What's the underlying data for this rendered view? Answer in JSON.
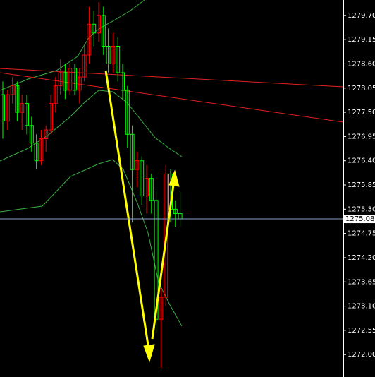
{
  "chart_data": {
    "type": "candlestick",
    "ylim": [
      1271.49,
      1280.05
    ],
    "yticks": [
      {
        "value": 1279.7,
        "label": "1279.70"
      },
      {
        "value": 1279.15,
        "label": "1279.15"
      },
      {
        "value": 1278.6,
        "label": "1278.60"
      },
      {
        "value": 1278.05,
        "label": "1278.05"
      },
      {
        "value": 1277.5,
        "label": "1277.50"
      },
      {
        "value": 1276.95,
        "label": "1276.95"
      },
      {
        "value": 1276.4,
        "label": "1276.40"
      },
      {
        "value": 1275.85,
        "label": "1275.85"
      },
      {
        "value": 1275.3,
        "label": "1275.30"
      },
      {
        "value": 1274.75,
        "label": "1274.75"
      },
      {
        "value": 1274.2,
        "label": "1274.20"
      },
      {
        "value": 1273.65,
        "label": "1273.65"
      },
      {
        "value": 1273.1,
        "label": "1273.10"
      },
      {
        "value": 1272.55,
        "label": "1272.55"
      },
      {
        "value": 1272,
        "label": "1272.00"
      }
    ],
    "last_price": 1275.08,
    "up_color": "#ff0000",
    "down_color": "#00ff00",
    "candles": [
      [
        1277.9,
        1278.2,
        1276.9,
        1277.3
      ],
      [
        1277.3,
        1278.0,
        1277.1,
        1277.9
      ],
      [
        1277.9,
        1278.3,
        1277.7,
        1278.1
      ],
      [
        1278.1,
        1278.2,
        1277.3,
        1277.5
      ],
      [
        1277.5,
        1277.9,
        1277.1,
        1277.7
      ],
      [
        1277.7,
        1277.9,
        1277.0,
        1277.2
      ],
      [
        1277.2,
        1277.4,
        1276.6,
        1276.8
      ],
      [
        1276.8,
        1277.0,
        1276.2,
        1276.4
      ],
      [
        1276.4,
        1277.1,
        1276.3,
        1276.9
      ],
      [
        1276.9,
        1277.2,
        1276.6,
        1277.1
      ],
      [
        1277.1,
        1277.9,
        1277.0,
        1277.7
      ],
      [
        1277.7,
        1278.3,
        1277.5,
        1278.1
      ],
      [
        1278.1,
        1278.7,
        1277.9,
        1278.4
      ],
      [
        1278.4,
        1278.6,
        1277.8,
        1278.0
      ],
      [
        1278.0,
        1278.6,
        1277.9,
        1278.5
      ],
      [
        1278.5,
        1278.6,
        1277.9,
        1278.0
      ],
      [
        1278.0,
        1278.5,
        1277.7,
        1278.3
      ],
      [
        1278.3,
        1279.0,
        1278.2,
        1278.8
      ],
      [
        1278.8,
        1279.9,
        1278.6,
        1279.5
      ],
      [
        1279.5,
        1279.8,
        1279.0,
        1279.3
      ],
      [
        1279.3,
        1280.0,
        1279.1,
        1279.7
      ],
      [
        1279.7,
        1279.9,
        1278.8,
        1279.0
      ],
      [
        1279.0,
        1279.4,
        1278.4,
        1278.6
      ],
      [
        1278.6,
        1279.3,
        1278.4,
        1279.0
      ],
      [
        1279.0,
        1279.2,
        1278.2,
        1278.4
      ],
      [
        1278.4,
        1278.6,
        1277.8,
        1278.0
      ],
      [
        1278.0,
        1278.1,
        1276.7,
        1277.0
      ],
      [
        1277.0,
        1277.2,
        1275.0,
        1276.2
      ],
      [
        1276.2,
        1276.6,
        1275.8,
        1276.4
      ],
      [
        1276.4,
        1276.5,
        1275.4,
        1275.6
      ],
      [
        1275.6,
        1276.3,
        1275.2,
        1276.0
      ],
      [
        1276.0,
        1276.1,
        1275.2,
        1275.5
      ],
      [
        1275.5,
        1275.7,
        1272.5,
        1272.8
      ],
      [
        1272.8,
        1273.5,
        1271.7,
        1273.3
      ],
      [
        1273.3,
        1276.3,
        1273.1,
        1276.1
      ],
      [
        1276.1,
        1276.2,
        1275.0,
        1275.3
      ],
      [
        1275.3,
        1275.5,
        1274.9,
        1275.2
      ],
      [
        1275.2,
        1275.7,
        1274.9,
        1275.08
      ]
    ]
  }
}
